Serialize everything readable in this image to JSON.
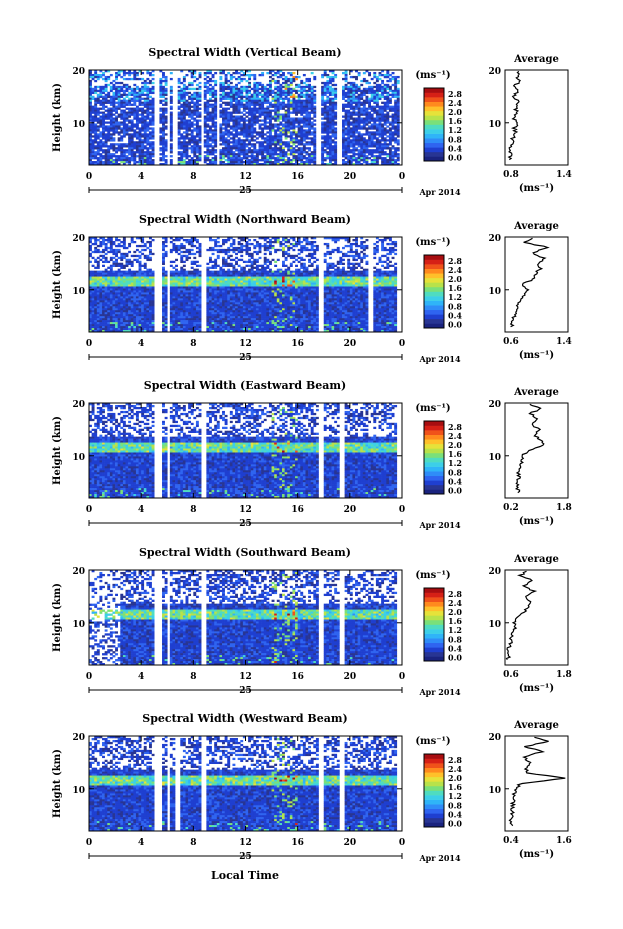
{
  "xlabel": "Local Time",
  "date_day": "25",
  "date_month": "Apr 2014",
  "colorbar_unit": "(ms⁻¹)",
  "avg_title": "Average",
  "avg_xlabel": "(ms⁻¹)",
  "ylabel": "Height (km)",
  "colormap": [
    "#1a237e",
    "#283593",
    "#1f3fd0",
    "#2f64f0",
    "#2f8cf8",
    "#2fb4f8",
    "#3ccfe8",
    "#4fdcc0",
    "#7ae07a",
    "#b8e24a",
    "#e6e23a",
    "#ffc02a",
    "#ff8a1e",
    "#f0521a",
    "#d62016",
    "#a80d10"
  ],
  "chart_data": [
    {
      "type": "heatmap",
      "title": "Spectral Width (Vertical Beam)",
      "xlabel": "Local Time",
      "ylabel": "Height (km)",
      "x_ticks": [
        "0",
        "4",
        "8",
        "12",
        "16",
        "20",
        "0"
      ],
      "y_ticks": [
        "20",
        "10"
      ],
      "xlim": [
        0,
        24
      ],
      "ylim": [
        2,
        20
      ],
      "colorbar": {
        "ticks": [
          "2.8",
          "2.4",
          "2.0",
          "1.6",
          "1.2",
          "0.8",
          "0.4",
          "0.0"
        ],
        "range": [
          0,
          3.0
        ]
      },
      "gaps_hours": [
        [
          5.1,
          5.4
        ],
        [
          6.0,
          6.2
        ],
        [
          6.5,
          6.8
        ],
        [
          8.6,
          8.8
        ],
        [
          9.8,
          10.0
        ],
        [
          17.4,
          17.8
        ],
        [
          19.0,
          19.3
        ],
        [
          23.8,
          24
        ]
      ],
      "average_profile": {
        "xlim": [
          0.8,
          1.4
        ],
        "x_ticks": [
          "0.8",
          "1.4"
        ],
        "y_ticks": [
          "20",
          "10"
        ],
        "height_km": [
          3,
          4,
          5,
          6,
          7,
          8,
          9,
          10,
          11,
          12,
          13,
          14,
          15,
          16,
          17,
          18,
          19,
          20
        ],
        "width_ms": [
          0.84,
          0.86,
          0.85,
          0.88,
          0.87,
          0.9,
          0.89,
          0.92,
          0.88,
          0.91,
          0.9,
          0.93,
          0.89,
          0.92,
          0.9,
          0.94,
          0.91,
          0.96
        ]
      }
    },
    {
      "type": "heatmap",
      "title": "Spectral Width (Northward Beam)",
      "xlabel": "Local Time",
      "ylabel": "Height (km)",
      "x_ticks": [
        "0",
        "4",
        "8",
        "12",
        "16",
        "20",
        "0"
      ],
      "y_ticks": [
        "20",
        "10"
      ],
      "xlim": [
        0,
        24
      ],
      "ylim": [
        2,
        20
      ],
      "colorbar": {
        "ticks": [
          "2.8",
          "2.4",
          "2.0",
          "1.6",
          "1.2",
          "0.8",
          "0.4",
          "0.0"
        ],
        "range": [
          0,
          3.0
        ]
      },
      "gaps_hours": [
        [
          5.1,
          5.5
        ],
        [
          6.0,
          6.3
        ],
        [
          8.6,
          8.9
        ],
        [
          17.6,
          17.9
        ],
        [
          21.4,
          21.7
        ],
        [
          23.7,
          24
        ]
      ],
      "average_profile": {
        "xlim": [
          0.6,
          1.4
        ],
        "x_ticks": [
          "0.6",
          "1.4"
        ],
        "y_ticks": [
          "20",
          "10"
        ],
        "height_km": [
          3,
          4,
          5,
          6,
          7,
          8,
          9,
          10,
          11,
          12,
          13,
          14,
          15,
          16,
          17,
          18,
          19,
          20
        ],
        "width_ms": [
          0.68,
          0.7,
          0.72,
          0.75,
          0.74,
          0.8,
          0.85,
          0.9,
          0.82,
          0.95,
          0.98,
          1.05,
          1.02,
          1.1,
          0.95,
          1.15,
          0.85,
          1.0
        ]
      }
    },
    {
      "type": "heatmap",
      "title": "Spectral Width (Eastward Beam)",
      "xlabel": "Local Time",
      "ylabel": "Height (km)",
      "x_ticks": [
        "0",
        "4",
        "8",
        "12",
        "16",
        "20",
        "0"
      ],
      "y_ticks": [
        "20",
        "10"
      ],
      "xlim": [
        0,
        24
      ],
      "ylim": [
        2,
        20
      ],
      "colorbar": {
        "ticks": [
          "2.8",
          "2.4",
          "2.0",
          "1.6",
          "1.2",
          "0.8",
          "0.4",
          "0.0"
        ],
        "range": [
          0,
          3.0
        ]
      },
      "gaps_hours": [
        [
          5.1,
          5.5
        ],
        [
          6.0,
          6.3
        ],
        [
          8.6,
          8.9
        ],
        [
          17.6,
          17.9
        ],
        [
          19.3,
          19.6
        ],
        [
          23.7,
          24
        ]
      ],
      "average_profile": {
        "xlim": [
          0.2,
          1.8
        ],
        "x_ticks": [
          "0.2",
          "1.8"
        ],
        "y_ticks": [
          "20",
          "10"
        ],
        "height_km": [
          3,
          4,
          5,
          6,
          7,
          8,
          9,
          10,
          11,
          12,
          13,
          14,
          15,
          16,
          17,
          18,
          19,
          20
        ],
        "width_ms": [
          0.55,
          0.5,
          0.52,
          0.55,
          0.54,
          0.58,
          0.62,
          0.65,
          0.8,
          1.2,
          1.1,
          0.95,
          1.05,
          0.9,
          1.0,
          0.85,
          1.1,
          0.7
        ]
      }
    },
    {
      "type": "heatmap",
      "title": "Spectral Width (Southward Beam)",
      "xlabel": "Local Time",
      "ylabel": "Height (km)",
      "x_ticks": [
        "0",
        "4",
        "8",
        "12",
        "16",
        "20",
        "0"
      ],
      "y_ticks": [
        "20",
        "10"
      ],
      "xlim": [
        0,
        24
      ],
      "ylim": [
        2,
        20
      ],
      "colorbar": {
        "ticks": [
          "2.8",
          "2.4",
          "2.0",
          "1.6",
          "1.2",
          "0.8",
          "0.4",
          "0.0"
        ],
        "range": [
          0,
          3.0
        ]
      },
      "gaps_hours": [
        [
          5.1,
          5.5
        ],
        [
          6.0,
          6.3
        ],
        [
          8.6,
          8.9
        ],
        [
          17.6,
          17.9
        ],
        [
          19.3,
          19.6
        ],
        [
          23.7,
          24
        ]
      ],
      "average_profile": {
        "xlim": [
          0.6,
          1.8
        ],
        "x_ticks": [
          "0.6",
          "1.8"
        ],
        "y_ticks": [
          "20",
          "10"
        ],
        "height_km": [
          3,
          4,
          5,
          6,
          7,
          8,
          9,
          10,
          11,
          12,
          13,
          14,
          15,
          16,
          17,
          18,
          19,
          20
        ],
        "width_ms": [
          0.65,
          0.68,
          0.66,
          0.7,
          0.72,
          0.75,
          0.8,
          0.78,
          0.85,
          0.95,
          1.05,
          1.1,
          1.0,
          1.15,
          0.95,
          1.1,
          0.9,
          1.05
        ]
      }
    },
    {
      "type": "heatmap",
      "title": "Spectral Width (Westward Beam)",
      "xlabel": "Local Time",
      "ylabel": "Height (km)",
      "x_ticks": [
        "0",
        "4",
        "8",
        "12",
        "16",
        "20",
        "0"
      ],
      "y_ticks": [
        "20",
        "10"
      ],
      "xlim": [
        0,
        24
      ],
      "ylim": [
        2,
        20
      ],
      "colorbar": {
        "ticks": [
          "2.8",
          "2.4",
          "2.0",
          "1.6",
          "1.2",
          "0.8",
          "0.4",
          "0.0"
        ],
        "range": [
          0,
          3.0
        ]
      },
      "gaps_hours": [
        [
          5.1,
          5.5
        ],
        [
          6.0,
          6.3
        ],
        [
          6.6,
          6.9
        ],
        [
          8.6,
          8.9
        ],
        [
          17.6,
          17.9
        ],
        [
          19.3,
          19.6
        ],
        [
          23.7,
          24
        ]
      ],
      "average_profile": {
        "xlim": [
          0.4,
          1.6
        ],
        "x_ticks": [
          "0.4",
          "1.6"
        ],
        "y_ticks": [
          "20",
          "10"
        ],
        "height_km": [
          3,
          4,
          5,
          6,
          7,
          8,
          9,
          10,
          11,
          12,
          13,
          14,
          15,
          16,
          17,
          18,
          19,
          20
        ],
        "width_ms": [
          0.55,
          0.52,
          0.54,
          0.53,
          0.55,
          0.56,
          0.58,
          0.6,
          0.7,
          1.55,
          0.85,
          0.8,
          0.9,
          0.75,
          1.1,
          0.8,
          1.2,
          0.9
        ]
      }
    }
  ]
}
